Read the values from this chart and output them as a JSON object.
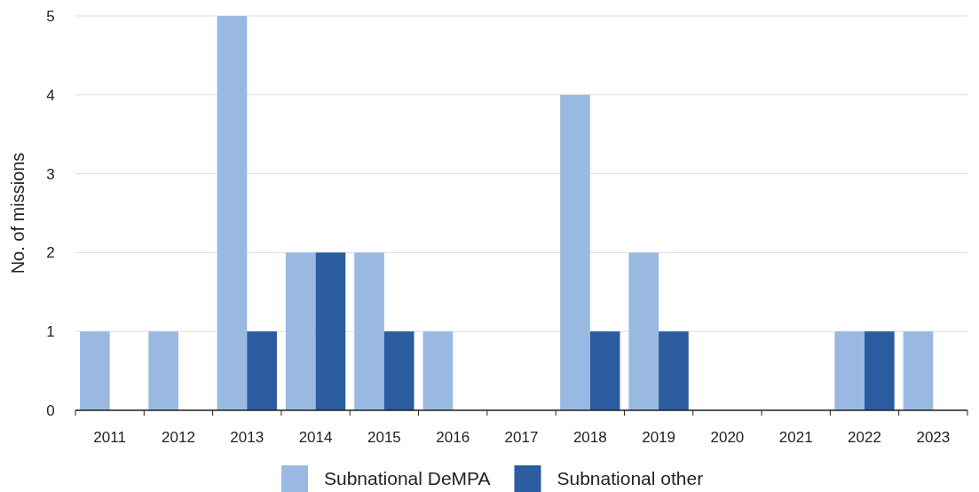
{
  "chart_data": {
    "type": "bar",
    "ylabel": "No. of missions",
    "categories": [
      "2011",
      "2012",
      "2013",
      "2014",
      "2015",
      "2016",
      "2017",
      "2018",
      "2019",
      "2020",
      "2021",
      "2022",
      "2023"
    ],
    "series": [
      {
        "name": "Subnational DeMPA",
        "color": "#9ab9e2",
        "values": [
          1,
          1,
          5,
          2,
          2,
          1,
          0,
          4,
          2,
          0,
          0,
          1,
          1
        ]
      },
      {
        "name": "Subnational other",
        "color": "#2a5c9f",
        "values": [
          0,
          0,
          1,
          2,
          1,
          0,
          0,
          1,
          1,
          0,
          0,
          1,
          0
        ]
      }
    ],
    "ylim": [
      0,
      5
    ],
    "yticks": [
      0,
      1,
      2,
      3,
      4,
      5
    ],
    "grid": "y",
    "legend": "bottom"
  }
}
